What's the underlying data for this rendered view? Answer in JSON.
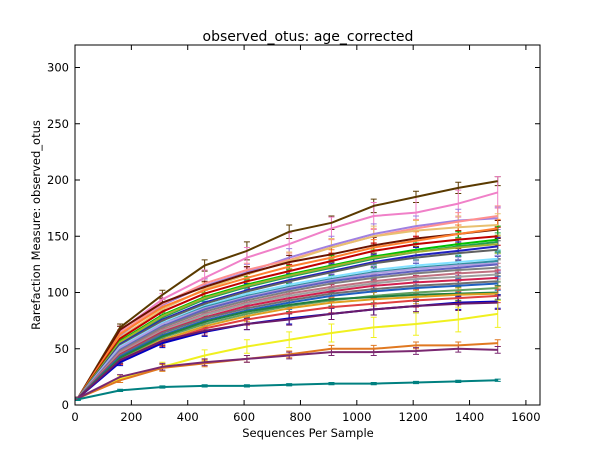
{
  "chart_data": {
    "type": "line",
    "title": "observed_otus: age_corrected",
    "xlabel": "Sequences Per Sample",
    "ylabel": "Rarefaction Measure: observed_otus",
    "xlim": [
      0,
      1650
    ],
    "ylim": [
      0,
      320
    ],
    "xticks": [
      0,
      200,
      400,
      600,
      800,
      1000,
      1200,
      1400,
      1600
    ],
    "yticks": [
      0,
      50,
      100,
      150,
      200,
      250,
      300
    ],
    "grid": false,
    "error_bars": true,
    "x": [
      10,
      160,
      310,
      460,
      610,
      760,
      910,
      1060,
      1210,
      1360,
      1500
    ],
    "series": [
      {
        "color": "#5a3a00",
        "values": [
          6,
          69,
          98,
          124,
          137,
          154,
          162,
          177,
          185,
          193,
          199
        ],
        "err": [
          1,
          3,
          4,
          5,
          8,
          6,
          6,
          6,
          5,
          5,
          4
        ]
      },
      {
        "color": "#f080c8",
        "values": [
          6,
          66,
          94,
          113,
          131,
          143,
          157,
          168,
          171,
          179,
          189
        ],
        "err": [
          1,
          4,
          5,
          7,
          9,
          10,
          10,
          12,
          14,
          12,
          14
        ]
      },
      {
        "color": "#a080e0",
        "values": [
          6,
          62,
          89,
          106,
          118,
          131,
          142,
          152,
          159,
          164,
          166
        ],
        "err": [
          1,
          4,
          5,
          6,
          7,
          8,
          8,
          9,
          9,
          10,
          10
        ]
      },
      {
        "color": "#ff9090",
        "values": [
          6,
          64,
          90,
          108,
          120,
          129,
          140,
          150,
          157,
          163,
          168
        ],
        "err": [
          1,
          3,
          4,
          5,
          6,
          6,
          7,
          7,
          8,
          8,
          9
        ]
      },
      {
        "color": "#e8c070",
        "values": [
          6,
          60,
          85,
          103,
          116,
          128,
          140,
          150,
          155,
          158,
          160
        ],
        "err": [
          1,
          4,
          5,
          6,
          7,
          8,
          8,
          9,
          9,
          10,
          10
        ]
      },
      {
        "color": "#6a1400",
        "values": [
          6,
          67,
          91,
          105,
          117,
          127,
          134,
          142,
          148,
          152,
          156
        ],
        "err": [
          1,
          3,
          4,
          5,
          6,
          6,
          7,
          7,
          7,
          8,
          8
        ]
      },
      {
        "color": "#ff8030",
        "values": [
          6,
          63,
          87,
          102,
          113,
          123,
          131,
          140,
          146,
          152,
          157
        ],
        "err": [
          1,
          3,
          4,
          5,
          6,
          6,
          7,
          7,
          8,
          8,
          8
        ]
      },
      {
        "color": "#c00000",
        "values": [
          6,
          59,
          83,
          99,
          110,
          119,
          128,
          137,
          143,
          147,
          150
        ],
        "err": [
          1,
          3,
          4,
          5,
          6,
          6,
          7,
          7,
          7,
          8,
          8
        ]
      },
      {
        "color": "#00c000",
        "values": [
          6,
          57,
          80,
          96,
          107,
          116,
          124,
          132,
          138,
          143,
          147
        ],
        "err": [
          1,
          4,
          5,
          6,
          7,
          8,
          9,
          10,
          10,
          11,
          12
        ]
      },
      {
        "color": "#20a050",
        "values": [
          6,
          55,
          78,
          94,
          105,
          114,
          122,
          130,
          136,
          141,
          145
        ],
        "err": [
          1,
          3,
          4,
          5,
          6,
          6,
          7,
          7,
          8,
          8,
          8
        ]
      },
      {
        "color": "#a0b030",
        "values": [
          6,
          56,
          79,
          95,
          106,
          115,
          123,
          131,
          136,
          140,
          143
        ],
        "err": [
          1,
          3,
          4,
          5,
          6,
          6,
          7,
          7,
          7,
          8,
          8
        ]
      },
      {
        "color": "#2020c0",
        "values": [
          6,
          54,
          76,
          91,
          102,
          111,
          119,
          127,
          133,
          137,
          141
        ],
        "err": [
          1,
          3,
          4,
          5,
          6,
          6,
          7,
          7,
          7,
          8,
          8
        ]
      },
      {
        "color": "#606060",
        "values": [
          6,
          53,
          75,
          90,
          101,
          110,
          118,
          126,
          131,
          135,
          138
        ],
        "err": [
          1,
          3,
          4,
          5,
          6,
          6,
          7,
          7,
          7,
          7,
          8
        ]
      },
      {
        "color": "#80e0ff",
        "values": [
          6,
          52,
          73,
          88,
          99,
          107,
          114,
          120,
          124,
          127,
          130
        ],
        "err": [
          1,
          3,
          4,
          5,
          6,
          6,
          7,
          7,
          7,
          7,
          8
        ]
      },
      {
        "color": "#3090a0",
        "values": [
          6,
          50,
          72,
          87,
          97,
          105,
          112,
          118,
          122,
          125,
          128
        ],
        "err": [
          1,
          3,
          4,
          5,
          6,
          6,
          7,
          7,
          7,
          7,
          8
        ]
      },
      {
        "color": "#b0a0e0",
        "values": [
          6,
          51,
          72,
          86,
          96,
          104,
          111,
          117,
          121,
          124,
          126
        ],
        "err": [
          1,
          3,
          4,
          5,
          6,
          6,
          6,
          7,
          7,
          7,
          7
        ]
      },
      {
        "color": "#6060c0",
        "values": [
          6,
          49,
          70,
          85,
          95,
          103,
          110,
          115,
          119,
          122,
          125
        ],
        "err": [
          1,
          3,
          4,
          5,
          6,
          6,
          6,
          7,
          7,
          7,
          7
        ]
      },
      {
        "color": "#808080",
        "values": [
          6,
          48,
          69,
          83,
          93,
          101,
          108,
          113,
          117,
          120,
          122
        ],
        "err": [
          1,
          3,
          4,
          5,
          6,
          6,
          6,
          7,
          7,
          7,
          7
        ]
      },
      {
        "color": "#c07080",
        "values": [
          6,
          47,
          67,
          81,
          91,
          99,
          105,
          110,
          114,
          117,
          119
        ],
        "err": [
          1,
          3,
          4,
          5,
          5,
          6,
          6,
          6,
          7,
          7,
          7
        ]
      },
      {
        "color": "#a0a0a0",
        "values": [
          6,
          46,
          66,
          80,
          90,
          97,
          103,
          108,
          112,
          114,
          116
        ],
        "err": [
          1,
          3,
          4,
          5,
          5,
          6,
          6,
          6,
          6,
          7,
          7
        ]
      },
      {
        "color": "#d02050",
        "values": [
          6,
          45,
          65,
          78,
          88,
          95,
          101,
          106,
          109,
          111,
          113
        ],
        "err": [
          1,
          3,
          4,
          5,
          5,
          6,
          6,
          6,
          6,
          7,
          7
        ]
      },
      {
        "color": "#707070",
        "values": [
          6,
          44,
          64,
          77,
          86,
          93,
          99,
          103,
          106,
          108,
          110
        ],
        "err": [
          1,
          3,
          4,
          5,
          5,
          6,
          6,
          6,
          6,
          6,
          7
        ]
      },
      {
        "color": "#2060c0",
        "values": [
          6,
          43,
          62,
          75,
          84,
          91,
          97,
          101,
          104,
          106,
          108
        ],
        "err": [
          1,
          3,
          4,
          5,
          5,
          6,
          6,
          6,
          6,
          6,
          6
        ]
      },
      {
        "color": "#60a060",
        "values": [
          6,
          41,
          60,
          72,
          81,
          88,
          93,
          97,
          100,
          102,
          104
        ],
        "err": [
          1,
          3,
          4,
          5,
          5,
          5,
          6,
          6,
          6,
          6,
          6
        ]
      },
      {
        "color": "#208040",
        "values": [
          6,
          42,
          61,
          74,
          83,
          89,
          94,
          96,
          98,
          99,
          100
        ],
        "err": [
          1,
          3,
          4,
          5,
          5,
          6,
          6,
          6,
          6,
          6,
          6
        ]
      },
      {
        "color": "#e0a020",
        "values": [
          6,
          40,
          58,
          70,
          79,
          86,
          91,
          94,
          96,
          98,
          99
        ],
        "err": [
          1,
          3,
          4,
          5,
          5,
          5,
          5,
          6,
          6,
          6,
          6
        ]
      },
      {
        "color": "#e04040",
        "values": [
          6,
          39,
          56,
          68,
          76,
          82,
          87,
          90,
          93,
          95,
          97
        ],
        "err": [
          1,
          3,
          4,
          4,
          5,
          5,
          5,
          5,
          6,
          6,
          6
        ]
      },
      {
        "color": "#0000c0",
        "values": [
          6,
          38,
          55,
          65,
          72,
          77,
          81,
          85,
          88,
          91,
          92
        ],
        "err": [
          1,
          3,
          4,
          4,
          5,
          5,
          5,
          5,
          6,
          6,
          6
        ]
      },
      {
        "color": "#6a1a6a",
        "values": [
          6,
          40,
          57,
          66,
          72,
          76,
          81,
          85,
          88,
          90,
          91
        ],
        "err": [
          1,
          3,
          4,
          4,
          5,
          5,
          5,
          5,
          5,
          6,
          6
        ]
      },
      {
        "color": "#f0f020",
        "values": [
          6,
          23,
          34,
          44,
          52,
          58,
          64,
          69,
          72,
          76,
          81
        ],
        "err": [
          1,
          3,
          4,
          5,
          6,
          7,
          8,
          9,
          10,
          11,
          12
        ]
      },
      {
        "color": "#e07820",
        "values": [
          6,
          22,
          33,
          37,
          41,
          45,
          50,
          50,
          53,
          53,
          55
        ],
        "err": [
          1,
          2,
          3,
          3,
          3,
          3,
          3,
          3,
          3,
          3,
          3
        ]
      },
      {
        "color": "#7a2870",
        "values": [
          6,
          25,
          34,
          38,
          41,
          44,
          47,
          47,
          48,
          50,
          49
        ],
        "err": [
          1,
          2,
          3,
          3,
          3,
          3,
          3,
          3,
          3,
          3,
          3
        ]
      },
      {
        "color": "#008080",
        "values": [
          5,
          13,
          16,
          17,
          17,
          18,
          19,
          19,
          20,
          21,
          22
        ],
        "err": [
          1,
          1,
          1,
          1,
          1,
          1,
          1,
          1,
          1,
          1,
          1
        ]
      }
    ]
  }
}
